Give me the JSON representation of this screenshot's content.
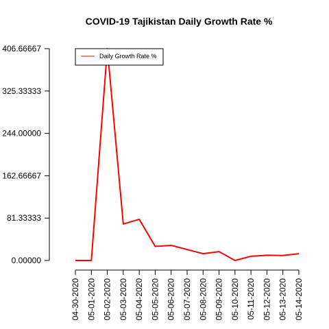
{
  "chart_data": {
    "type": "line",
    "title": "COVID-19 Tajikistan Daily Growth Rate %",
    "xlabel": "",
    "ylabel": "",
    "x": [
      "04-30-2020",
      "05-01-2020",
      "05-02-2020",
      "05-03-2020",
      "05-04-2020",
      "05-05-2020",
      "05-06-2020",
      "05-07-2020",
      "05-08-2020",
      "05-09-2020",
      "05-10-2020",
      "05-11-2020",
      "05-12-2020",
      "05-13-2020",
      "05-14-2020"
    ],
    "series": [
      {
        "name": "Daily Growth Rate %",
        "color": "#ff0000",
        "values": [
          0,
          0,
          406.66667,
          70,
          79,
          27,
          29,
          21,
          13,
          17,
          0,
          8,
          10,
          9.5,
          13
        ]
      }
    ],
    "yticks": [
      "0.00000",
      "81.33333",
      "162.66667",
      "244.00000",
      "325.33333",
      "406.66667"
    ],
    "ylim": [
      0,
      406.66667
    ],
    "grid": false,
    "legend_position": "top-left"
  }
}
